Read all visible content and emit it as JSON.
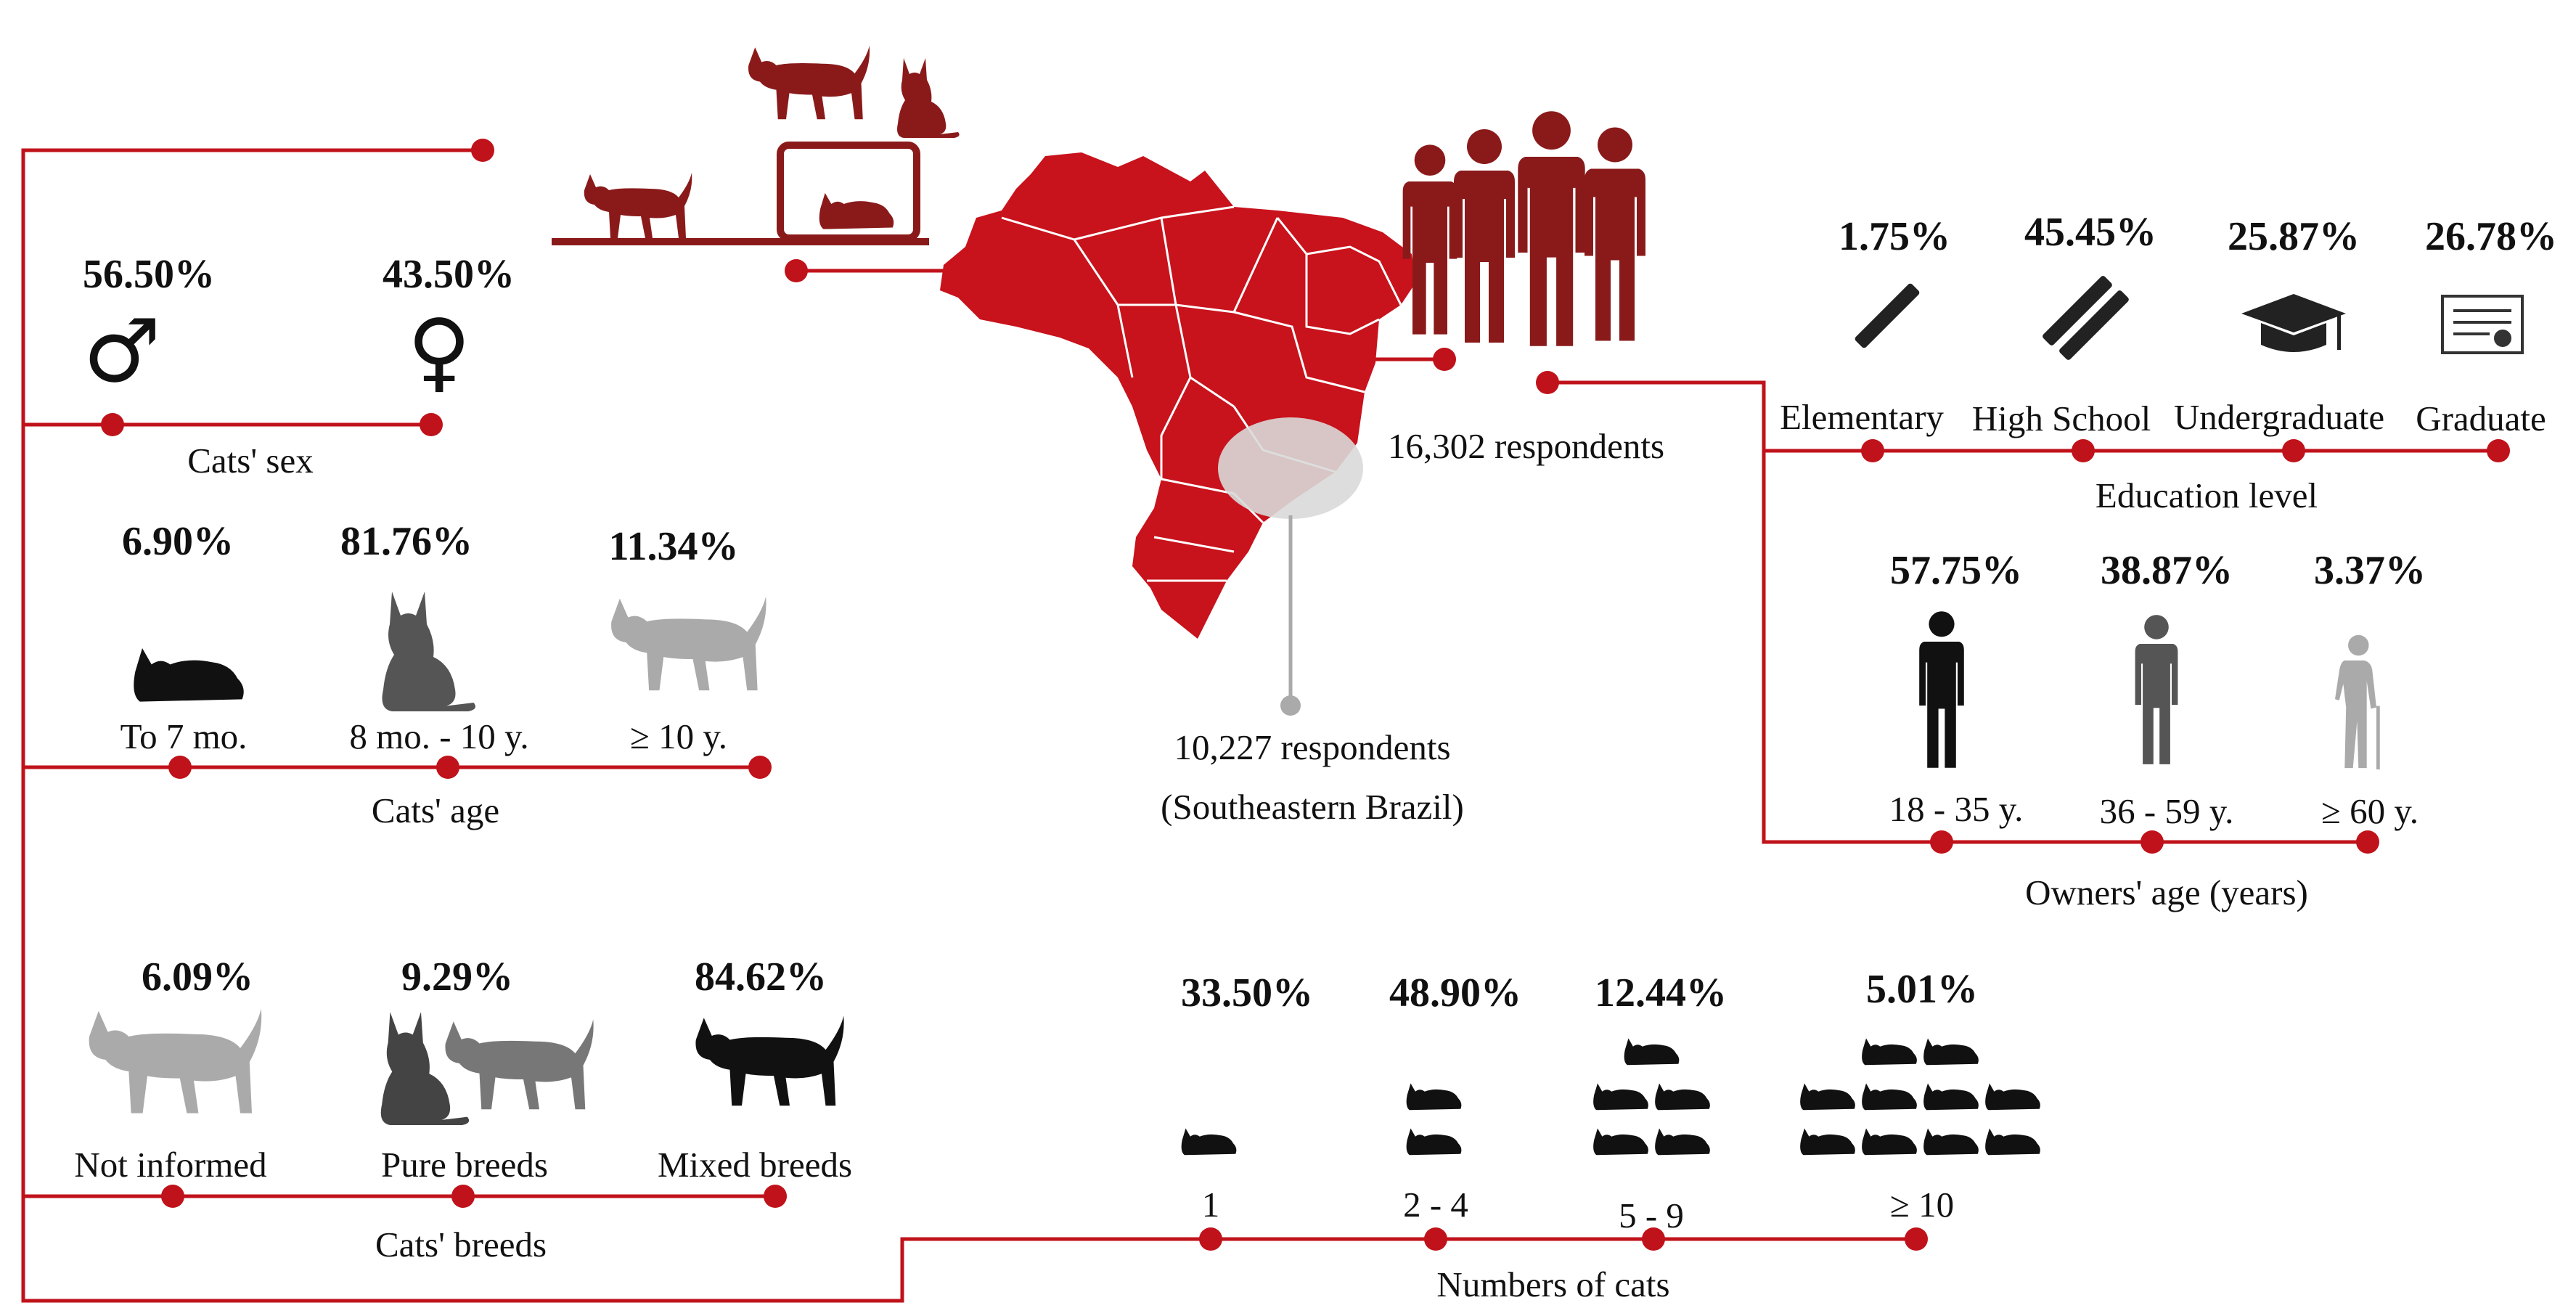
{
  "colors": {
    "accent": "#c0121a",
    "map_red": "#c8121c",
    "dark_red": "#8a1a1a",
    "light_gray": "#aaaaaa",
    "mid_gray": "#666666",
    "dark_gray": "#333333"
  },
  "totals": {
    "all_respondents": "16,302 respondents",
    "southeast_respondents": "10,227 respondents",
    "southeast_region": "(Southeastern Brazil)"
  },
  "cats_sex": {
    "title": "Cats' sex",
    "items": [
      {
        "pct": "56.50%",
        "symbol": "♂",
        "icon": "male-symbol-icon"
      },
      {
        "pct": "43.50%",
        "symbol": "♀",
        "icon": "female-symbol-icon"
      }
    ]
  },
  "cats_age": {
    "title": "Cats' age",
    "items": [
      {
        "pct": "6.90%",
        "label": "To 7 mo.",
        "icon": "kitten-icon"
      },
      {
        "pct": "81.76%",
        "label": "8 mo. - 10 y.",
        "icon": "adult-cat-icon"
      },
      {
        "pct": "11.34%",
        "label": "≥ 10 y.",
        "icon": "senior-cat-icon"
      }
    ]
  },
  "cats_breeds": {
    "title": "Cats' breeds",
    "items": [
      {
        "pct": "6.09%",
        "label": "Not informed",
        "icon": "cat-gray-icon"
      },
      {
        "pct": "9.29%",
        "label": "Pure breeds",
        "icon": "two-cats-icon"
      },
      {
        "pct": "84.62%",
        "label": "Mixed breeds",
        "icon": "black-cat-icon"
      }
    ]
  },
  "education": {
    "title": "Education level",
    "items": [
      {
        "pct": "1.75%",
        "label": "Elementary",
        "icon": "pencil-icon"
      },
      {
        "pct": "45.45%",
        "label": "High School",
        "icon": "two-pencils-icon"
      },
      {
        "pct": "25.87%",
        "label": "Undergraduate",
        "icon": "graduation-cap-icon"
      },
      {
        "pct": "26.78%",
        "label": "Graduate",
        "icon": "diploma-icon"
      }
    ]
  },
  "owners_age": {
    "title": "Owners' age (years)",
    "items": [
      {
        "pct": "57.75%",
        "label": "18 - 35 y.",
        "icon": "young-person-icon"
      },
      {
        "pct": "38.87%",
        "label": "36 - 59 y.",
        "icon": "adult-person-icon"
      },
      {
        "pct": "3.37%",
        "label": "≥ 60 y.",
        "icon": "elderly-person-icon"
      }
    ]
  },
  "num_cats": {
    "title": "Numbers of cats",
    "items": [
      {
        "pct": "33.50%",
        "label": "1",
        "count": 1
      },
      {
        "pct": "48.90%",
        "label": "2 - 4",
        "count": 2
      },
      {
        "pct": "12.44%",
        "label": "5 - 9",
        "count": 5
      },
      {
        "pct": "5.01%",
        "label": "≥ 10",
        "count": 10
      }
    ]
  }
}
